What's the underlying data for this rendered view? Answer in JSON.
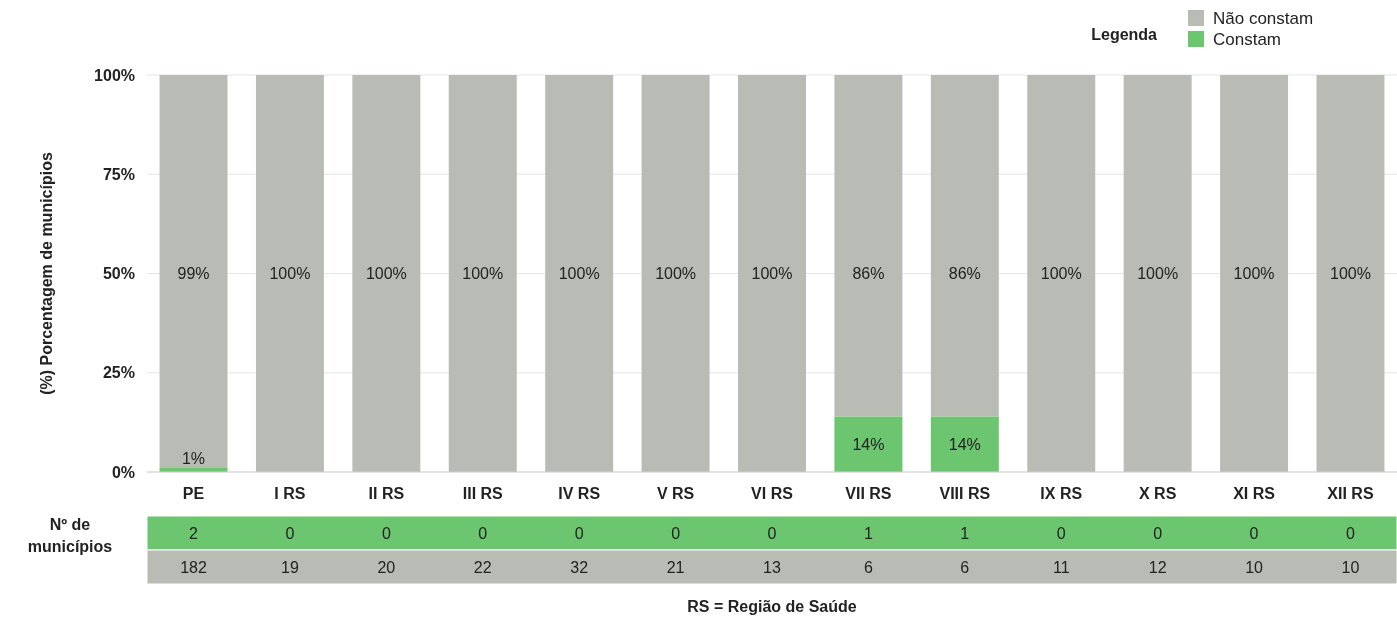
{
  "chart_data": {
    "type": "bar",
    "stacked": true,
    "categories": [
      "PE",
      "I RS",
      "II RS",
      "III RS",
      "IV RS",
      "V RS",
      "VI RS",
      "VII RS",
      "VIII RS",
      "IX RS",
      "X RS",
      "XI RS",
      "XII RS"
    ],
    "series": [
      {
        "name": "Constam",
        "color": "#6cc56f",
        "values": [
          1,
          0,
          0,
          0,
          0,
          0,
          0,
          14,
          14,
          0,
          0,
          0,
          0
        ],
        "value_labels": [
          "1%",
          null,
          null,
          null,
          null,
          null,
          null,
          "14%",
          "14%",
          null,
          null,
          null,
          null
        ]
      },
      {
        "name": "Não constam",
        "color": "#b8bcb4",
        "values": [
          99,
          100,
          100,
          100,
          100,
          100,
          100,
          86,
          86,
          100,
          100,
          100,
          100
        ],
        "value_labels": [
          "99%",
          "100%",
          "100%",
          "100%",
          "100%",
          "100%",
          "100%",
          "86%",
          "86%",
          "100%",
          "100%",
          "100%",
          "100%"
        ]
      }
    ],
    "ylabel": "(%) Porcentagem de municípios",
    "legend_title": "Legenda",
    "legend": "top right",
    "grid": "y",
    "ylim": [
      0,
      100
    ],
    "yticks": [
      {
        "value": 0,
        "label": "0%"
      },
      {
        "value": 25,
        "label": "25%"
      },
      {
        "value": 50,
        "label": "50%"
      },
      {
        "value": 75,
        "label": "75%"
      },
      {
        "value": 100,
        "label": "100%"
      }
    ],
    "annotations": [
      "Nº de municípios",
      "RS = Região de Saúde",
      "2 0 0 0 0 0 0 1 1 0 0 0 0",
      "182 19 20 22 32 21 13 6 6 11 12 10 10"
    ]
  }
}
